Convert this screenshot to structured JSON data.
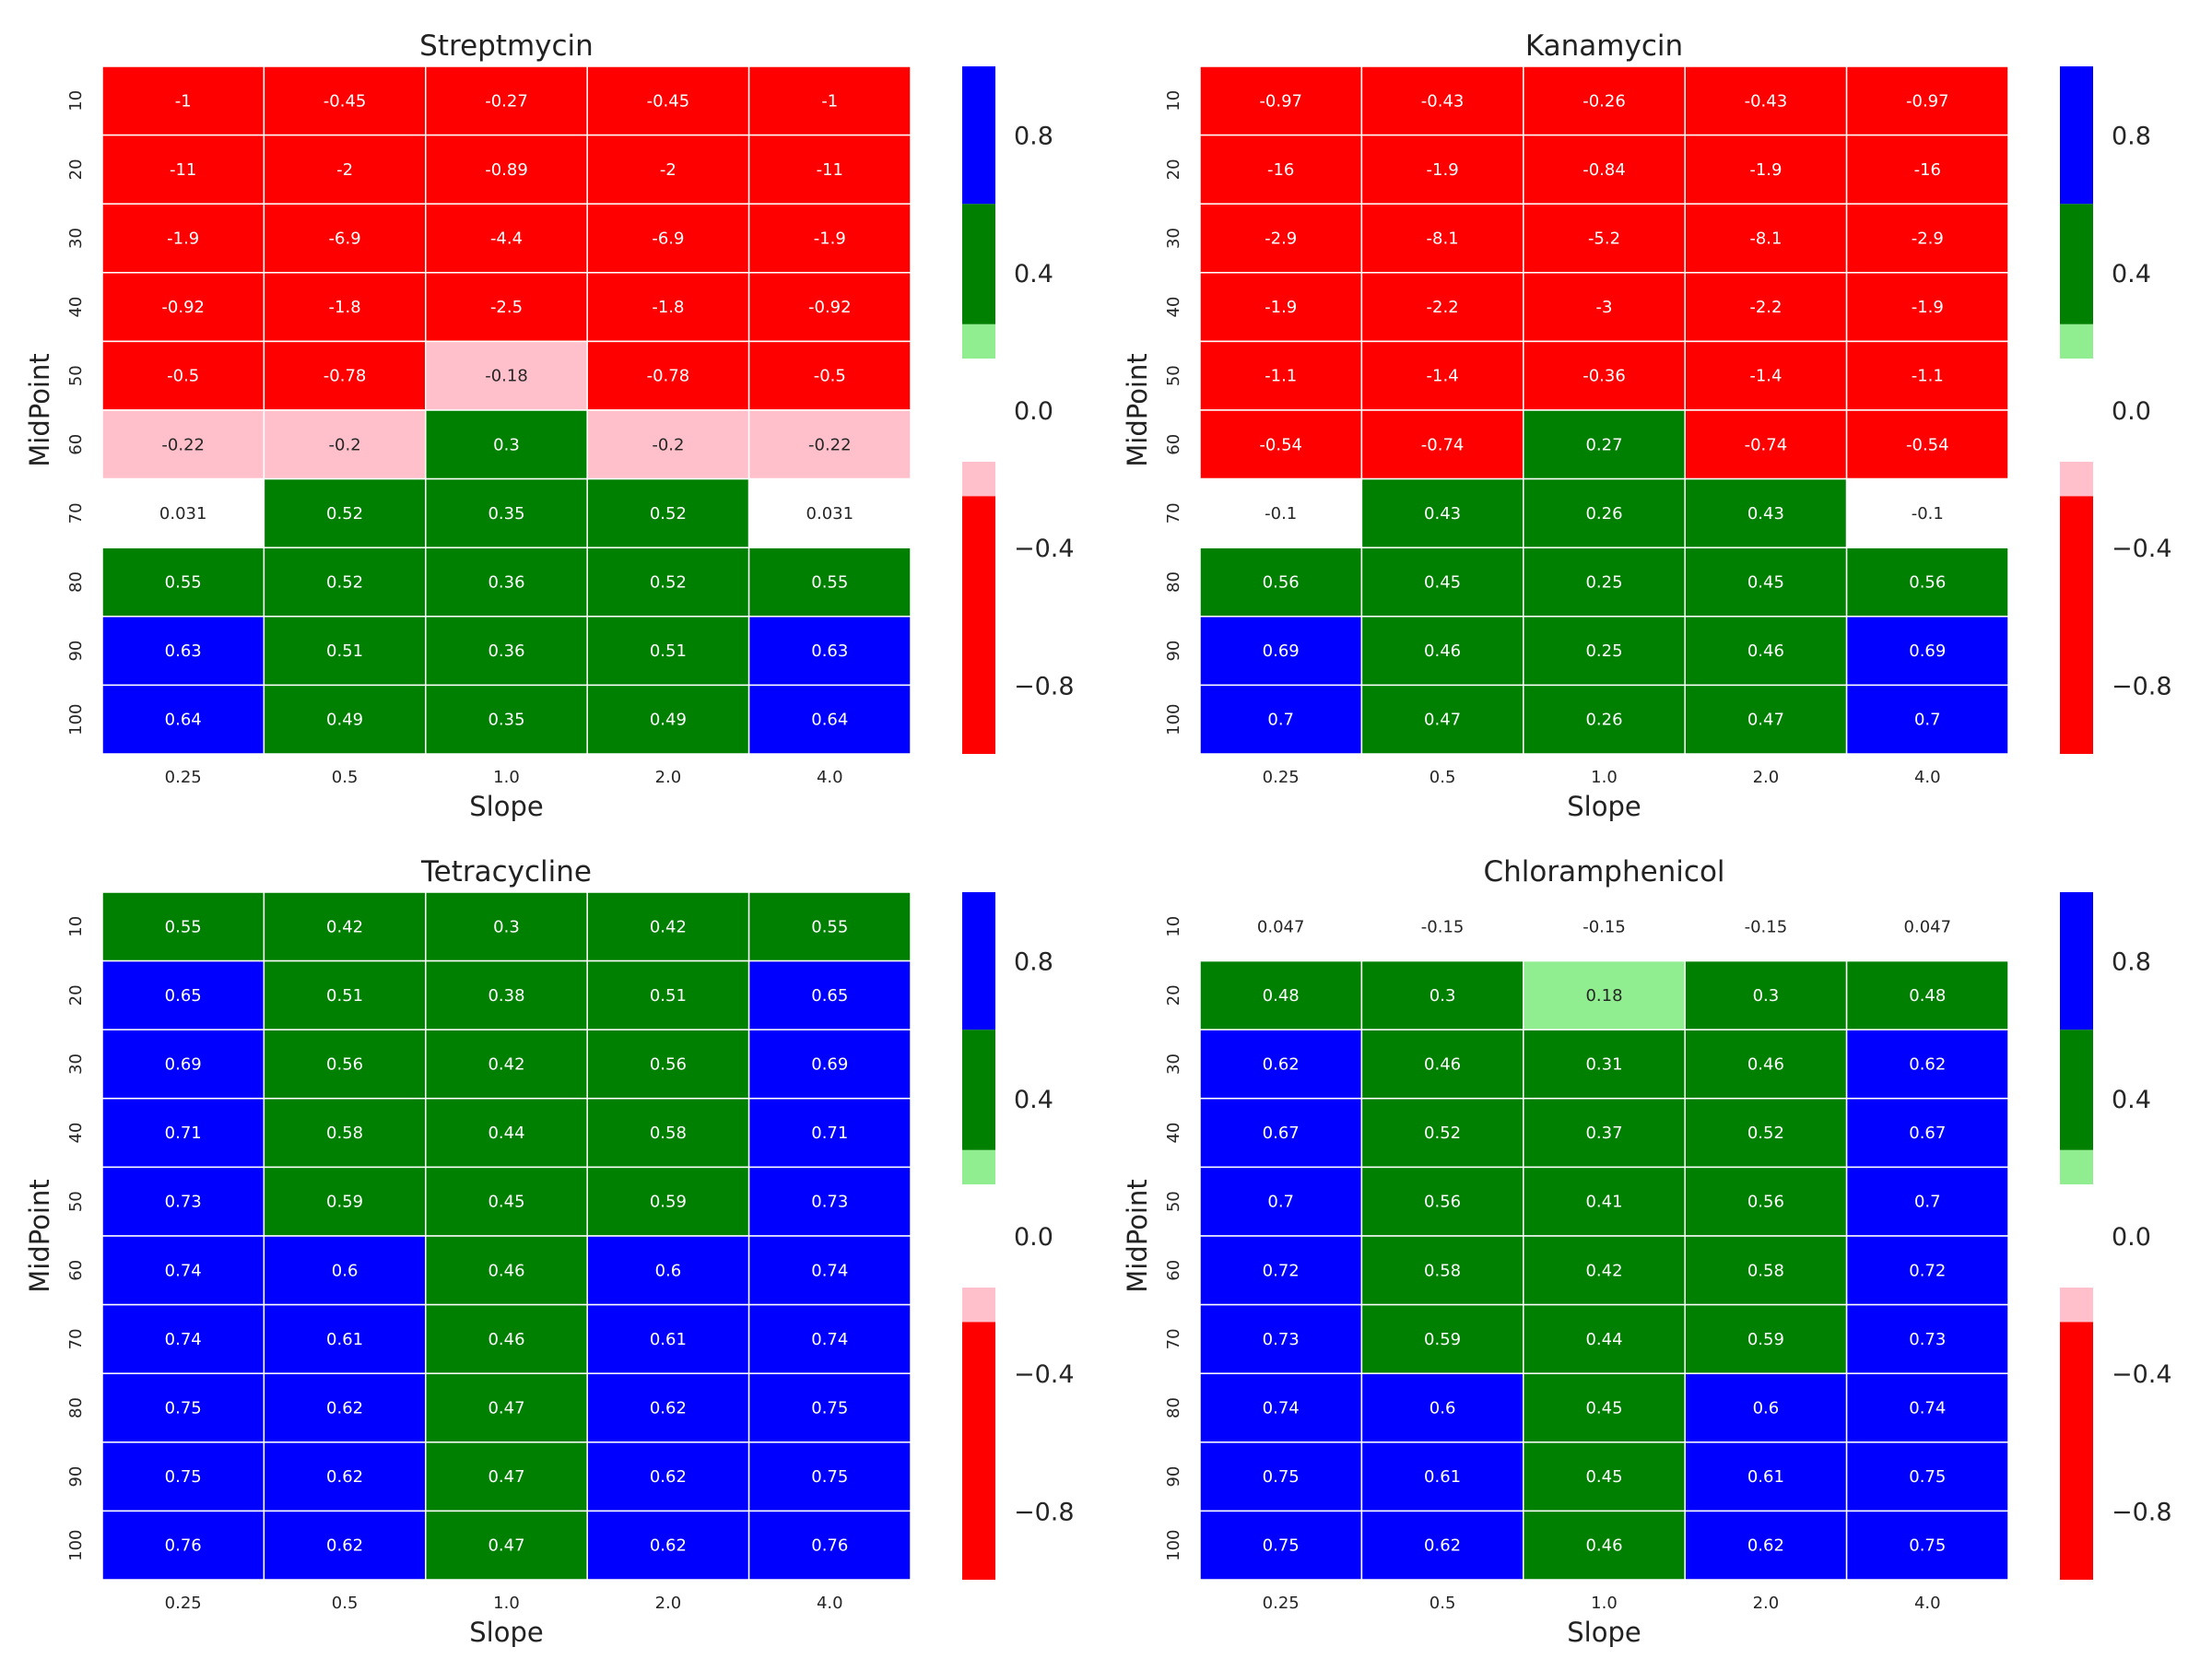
{
  "chart_data": [
    {
      "type": "heatmap",
      "title": "Streptmycin",
      "xlabel": "Slope",
      "ylabel": "MidPoint",
      "x_categories": [
        "0.25",
        "0.5",
        "1.0",
        "2.0",
        "4.0"
      ],
      "y_categories": [
        "10",
        "20",
        "30",
        "40",
        "50",
        "60",
        "70",
        "80",
        "90",
        "100"
      ],
      "cell_labels": [
        [
          "-1",
          "-0.45",
          "-0.27",
          "-0.45",
          "-1"
        ],
        [
          "-11",
          "-2",
          "-0.89",
          "-2",
          "-11"
        ],
        [
          "-1.9",
          "-6.9",
          "-4.4",
          "-6.9",
          "-1.9"
        ],
        [
          "-0.92",
          "-1.8",
          "-2.5",
          "-1.8",
          "-0.92"
        ],
        [
          "-0.5",
          "-0.78",
          "-0.18",
          "-0.78",
          "-0.5"
        ],
        [
          "-0.22",
          "-0.2",
          "0.3",
          "-0.2",
          "-0.22"
        ],
        [
          "0.031",
          "0.52",
          "0.35",
          "0.52",
          "0.031"
        ],
        [
          "0.55",
          "0.52",
          "0.36",
          "0.52",
          "0.55"
        ],
        [
          "0.63",
          "0.51",
          "0.36",
          "0.51",
          "0.63"
        ],
        [
          "0.64",
          "0.49",
          "0.35",
          "0.49",
          "0.64"
        ]
      ],
      "colorbar": {
        "ticks": [
          "0.8",
          "0.4",
          "0.0",
          "−0.4",
          "−0.8"
        ],
        "range": [
          -1,
          1
        ],
        "bins": [
          {
            "from": -1.0,
            "to": -0.25,
            "color": "#ff0000"
          },
          {
            "from": -0.25,
            "to": -0.15,
            "color": "#ffc0cb"
          },
          {
            "from": -0.15,
            "to": 0.15,
            "color": "#ffffff"
          },
          {
            "from": 0.15,
            "to": 0.25,
            "color": "#90ee90"
          },
          {
            "from": 0.25,
            "to": 0.6,
            "color": "#008000"
          },
          {
            "from": 0.6,
            "to": 1.0,
            "color": "#0000ff"
          }
        ]
      }
    },
    {
      "type": "heatmap",
      "title": "Kanamycin",
      "xlabel": "Slope",
      "ylabel": "MidPoint",
      "x_categories": [
        "0.25",
        "0.5",
        "1.0",
        "2.0",
        "4.0"
      ],
      "y_categories": [
        "10",
        "20",
        "30",
        "40",
        "50",
        "60",
        "70",
        "80",
        "90",
        "100"
      ],
      "cell_labels": [
        [
          "-0.97",
          "-0.43",
          "-0.26",
          "-0.43",
          "-0.97"
        ],
        [
          "-16",
          "-1.9",
          "-0.84",
          "-1.9",
          "-16"
        ],
        [
          "-2.9",
          "-8.1",
          "-5.2",
          "-8.1",
          "-2.9"
        ],
        [
          "-1.9",
          "-2.2",
          "-3",
          "-2.2",
          "-1.9"
        ],
        [
          "-1.1",
          "-1.4",
          "-0.36",
          "-1.4",
          "-1.1"
        ],
        [
          "-0.54",
          "-0.74",
          "0.27",
          "-0.74",
          "-0.54"
        ],
        [
          "-0.1",
          "0.43",
          "0.26",
          "0.43",
          "-0.1"
        ],
        [
          "0.56",
          "0.45",
          "0.25",
          "0.45",
          "0.56"
        ],
        [
          "0.69",
          "0.46",
          "0.25",
          "0.46",
          "0.69"
        ],
        [
          "0.7",
          "0.47",
          "0.26",
          "0.47",
          "0.7"
        ]
      ],
      "colorbar": {
        "ticks": [
          "0.8",
          "0.4",
          "0.0",
          "−0.4",
          "−0.8"
        ],
        "range": [
          -1,
          1
        ],
        "bins": [
          {
            "from": -1.0,
            "to": -0.25,
            "color": "#ff0000"
          },
          {
            "from": -0.25,
            "to": -0.15,
            "color": "#ffc0cb"
          },
          {
            "from": -0.15,
            "to": 0.15,
            "color": "#ffffff"
          },
          {
            "from": 0.15,
            "to": 0.25,
            "color": "#90ee90"
          },
          {
            "from": 0.25,
            "to": 0.6,
            "color": "#008000"
          },
          {
            "from": 0.6,
            "to": 1.0,
            "color": "#0000ff"
          }
        ]
      }
    },
    {
      "type": "heatmap",
      "title": "Tetracycline",
      "xlabel": "Slope",
      "ylabel": "MidPoint",
      "x_categories": [
        "0.25",
        "0.5",
        "1.0",
        "2.0",
        "4.0"
      ],
      "y_categories": [
        "10",
        "20",
        "30",
        "40",
        "50",
        "60",
        "70",
        "80",
        "90",
        "100"
      ],
      "cell_labels": [
        [
          "0.55",
          "0.42",
          "0.3",
          "0.42",
          "0.55"
        ],
        [
          "0.65",
          "0.51",
          "0.38",
          "0.51",
          "0.65"
        ],
        [
          "0.69",
          "0.56",
          "0.42",
          "0.56",
          "0.69"
        ],
        [
          "0.71",
          "0.58",
          "0.44",
          "0.58",
          "0.71"
        ],
        [
          "0.73",
          "0.59",
          "0.45",
          "0.59",
          "0.73"
        ],
        [
          "0.74",
          "0.6",
          "0.46",
          "0.6",
          "0.74"
        ],
        [
          "0.74",
          "0.61",
          "0.46",
          "0.61",
          "0.74"
        ],
        [
          "0.75",
          "0.62",
          "0.47",
          "0.62",
          "0.75"
        ],
        [
          "0.75",
          "0.62",
          "0.47",
          "0.62",
          "0.75"
        ],
        [
          "0.76",
          "0.62",
          "0.47",
          "0.62",
          "0.76"
        ]
      ],
      "colorbar": {
        "ticks": [
          "0.8",
          "0.4",
          "0.0",
          "−0.4",
          "−0.8"
        ],
        "range": [
          -1,
          1
        ],
        "bins": [
          {
            "from": -1.0,
            "to": -0.25,
            "color": "#ff0000"
          },
          {
            "from": -0.25,
            "to": -0.15,
            "color": "#ffc0cb"
          },
          {
            "from": -0.15,
            "to": 0.15,
            "color": "#ffffff"
          },
          {
            "from": 0.15,
            "to": 0.25,
            "color": "#90ee90"
          },
          {
            "from": 0.25,
            "to": 0.6,
            "color": "#008000"
          },
          {
            "from": 0.6,
            "to": 1.0,
            "color": "#0000ff"
          }
        ]
      }
    },
    {
      "type": "heatmap",
      "title": "Chloramphenicol",
      "xlabel": "Slope",
      "ylabel": "MidPoint",
      "x_categories": [
        "0.25",
        "0.5",
        "1.0",
        "2.0",
        "4.0"
      ],
      "y_categories": [
        "10",
        "20",
        "30",
        "40",
        "50",
        "60",
        "70",
        "80",
        "90",
        "100"
      ],
      "cell_labels": [
        [
          "0.047",
          "-0.15",
          "-0.15",
          "-0.15",
          "0.047"
        ],
        [
          "0.48",
          "0.3",
          "0.18",
          "0.3",
          "0.48"
        ],
        [
          "0.62",
          "0.46",
          "0.31",
          "0.46",
          "0.62"
        ],
        [
          "0.67",
          "0.52",
          "0.37",
          "0.52",
          "0.67"
        ],
        [
          "0.7",
          "0.56",
          "0.41",
          "0.56",
          "0.7"
        ],
        [
          "0.72",
          "0.58",
          "0.42",
          "0.58",
          "0.72"
        ],
        [
          "0.73",
          "0.59",
          "0.44",
          "0.59",
          "0.73"
        ],
        [
          "0.74",
          "0.6",
          "0.45",
          "0.6",
          "0.74"
        ],
        [
          "0.75",
          "0.61",
          "0.45",
          "0.61",
          "0.75"
        ],
        [
          "0.75",
          "0.62",
          "0.46",
          "0.62",
          "0.75"
        ]
      ],
      "colorbar": {
        "ticks": [
          "0.8",
          "0.4",
          "0.0",
          "−0.4",
          "−0.8"
        ],
        "range": [
          -1,
          1
        ],
        "bins": [
          {
            "from": -1.0,
            "to": -0.25,
            "color": "#ff0000"
          },
          {
            "from": -0.25,
            "to": -0.15,
            "color": "#ffc0cb"
          },
          {
            "from": -0.15,
            "to": 0.15,
            "color": "#ffffff"
          },
          {
            "from": 0.15,
            "to": 0.25,
            "color": "#90ee90"
          },
          {
            "from": 0.25,
            "to": 0.6,
            "color": "#008000"
          },
          {
            "from": 0.6,
            "to": 1.0,
            "color": "#0000ff"
          }
        ]
      }
    }
  ]
}
